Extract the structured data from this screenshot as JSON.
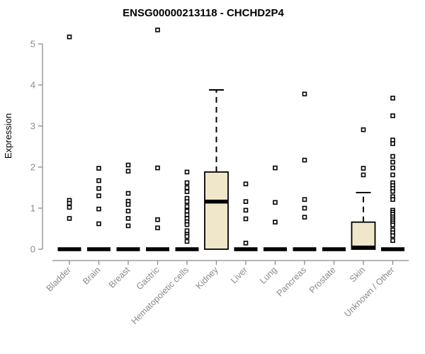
{
  "chart_data": {
    "type": "boxplot",
    "title": "ENSG00000213118 - CHCHD2P4",
    "xlabel": "",
    "ylabel": "Expression",
    "ylim": [
      0,
      5
    ],
    "yticks": [
      0,
      1,
      2,
      3,
      4,
      5
    ],
    "grid": false,
    "legend": null,
    "colors": {
      "box_fill": "#f0e7cb",
      "box_stroke": "#000000",
      "median": "#000000",
      "whisker": "#000000",
      "outlier": "#000000",
      "axis": "#8b8b8b",
      "tick_label": "#8a8a8a",
      "title": "#000000",
      "background": "#ffffff"
    },
    "categories": [
      "Bladder",
      "Brain",
      "Breast",
      "Gastric",
      "Hematopoietic cells",
      "Kidney",
      "Liver",
      "Lung",
      "Pancreas",
      "Prostate",
      "Skin",
      "Unknown / Other"
    ],
    "series": [
      {
        "category": "Bladder",
        "q1": 0,
        "median": 0,
        "q3": 0,
        "whisker_low": 0,
        "whisker_high": 0,
        "outliers": [
          5.17,
          1.19,
          1.12,
          1.02,
          0.75
        ]
      },
      {
        "category": "Brain",
        "q1": 0,
        "median": 0,
        "q3": 0,
        "whisker_low": 0,
        "whisker_high": 0,
        "outliers": [
          1.97,
          1.67,
          1.48,
          1.3,
          0.98,
          0.62
        ]
      },
      {
        "category": "Breast",
        "q1": 0,
        "median": 0,
        "q3": 0,
        "whisker_low": 0,
        "whisker_high": 0,
        "outliers": [
          2.05,
          1.9,
          1.36,
          1.17,
          1.09,
          0.93,
          0.75,
          0.57
        ]
      },
      {
        "category": "Gastric",
        "q1": 0,
        "median": 0,
        "q3": 0,
        "whisker_low": 0,
        "whisker_high": 0,
        "outliers": [
          5.34,
          1.98,
          0.72,
          0.52
        ]
      },
      {
        "category": "Hematopoietic cells",
        "q1": 0,
        "median": 0,
        "q3": 0,
        "whisker_low": 0,
        "whisker_high": 0,
        "outliers": [
          1.88,
          1.62,
          1.5,
          1.4,
          1.24,
          1.16,
          1.04,
          0.93,
          0.84,
          0.75,
          0.67,
          0.6,
          0.45,
          0.36,
          0.31,
          0.19
        ]
      },
      {
        "category": "Kidney",
        "q1": 0,
        "median": 1.16,
        "q3": 1.88,
        "whisker_low": 0,
        "whisker_high": 3.88,
        "outliers": []
      },
      {
        "category": "Liver",
        "q1": 0,
        "median": 0,
        "q3": 0,
        "whisker_low": 0,
        "whisker_high": 0,
        "outliers": [
          1.59,
          1.16,
          0.95,
          0.74,
          0.15
        ]
      },
      {
        "category": "Lung",
        "q1": 0,
        "median": 0,
        "q3": 0,
        "whisker_low": 0,
        "whisker_high": 0,
        "outliers": [
          1.98,
          1.14,
          0.66
        ]
      },
      {
        "category": "Pancreas",
        "q1": 0,
        "median": 0,
        "q3": 0,
        "whisker_low": 0,
        "whisker_high": 0,
        "outliers": [
          3.78,
          2.17,
          1.21,
          1.0,
          0.78
        ]
      },
      {
        "category": "Prostate",
        "q1": 0,
        "median": 0,
        "q3": 0,
        "whisker_low": 0,
        "whisker_high": 0,
        "outliers": []
      },
      {
        "category": "Skin",
        "q1": 0,
        "median": 0.04,
        "q3": 0.66,
        "whisker_low": 0,
        "whisker_high": 1.38,
        "outliers": [
          2.91,
          1.97,
          1.81
        ]
      },
      {
        "category": "Unknown / Other",
        "q1": 0,
        "median": 0,
        "q3": 0,
        "whisker_low": 0,
        "whisker_high": 0,
        "outliers": [
          3.68,
          3.25,
          2.66,
          2.57,
          2.26,
          2.12,
          1.98,
          1.81,
          1.62,
          1.55,
          1.48,
          1.41,
          1.28,
          1.21,
          0.95,
          0.9,
          0.85,
          0.79,
          0.74,
          0.69,
          0.64,
          0.59,
          0.47,
          0.4,
          0.33,
          0.21
        ]
      }
    ]
  }
}
